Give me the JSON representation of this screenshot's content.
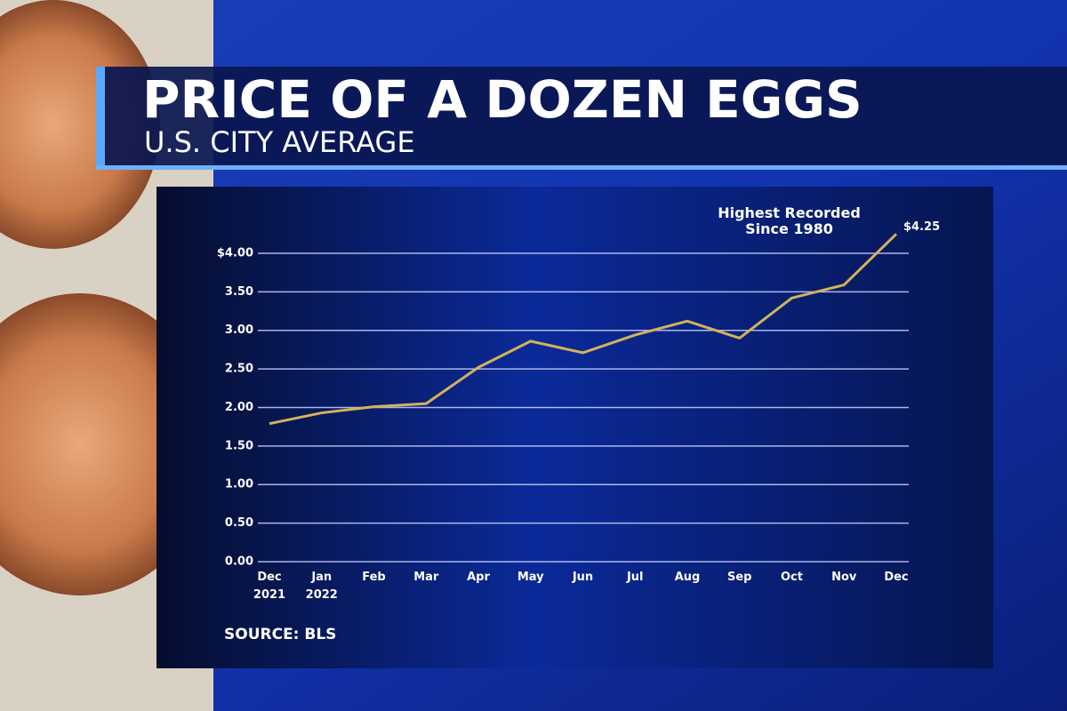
{
  "chart_data": {
    "type": "line",
    "title": "PRICE OF A DOZEN EGGS",
    "subtitle": "U.S. CITY AVERAGE",
    "source": "SOURCE: BLS",
    "annotation": "Highest Recorded Since 1980",
    "categories": [
      "Dec 2021",
      "Jan 2022",
      "Feb",
      "Mar",
      "Apr",
      "May",
      "Jun",
      "Jul",
      "Aug",
      "Sep",
      "Oct",
      "Nov",
      "Dec"
    ],
    "values": [
      1.79,
      1.93,
      2.01,
      2.05,
      2.52,
      2.86,
      2.71,
      2.94,
      3.12,
      2.9,
      3.42,
      3.59,
      4.25
    ],
    "value_labels": [
      null,
      null,
      null,
      null,
      null,
      null,
      null,
      null,
      null,
      null,
      null,
      null,
      "$4.25"
    ],
    "color": "#d2b25a",
    "ylim": [
      0,
      4.5
    ],
    "yticks": [
      {
        "value": 0,
        "label": "0.00"
      },
      {
        "value": 0.5,
        "label": "0.50"
      },
      {
        "value": 1,
        "label": "1.00"
      },
      {
        "value": 1.5,
        "label": "1.50"
      },
      {
        "value": 2,
        "label": "2.00"
      },
      {
        "value": 2.5,
        "label": "2.50"
      },
      {
        "value": 3,
        "label": "3.00"
      },
      {
        "value": 3.5,
        "label": "3.50"
      },
      {
        "value": 4,
        "label": "$4.00"
      }
    ],
    "grid": true
  }
}
